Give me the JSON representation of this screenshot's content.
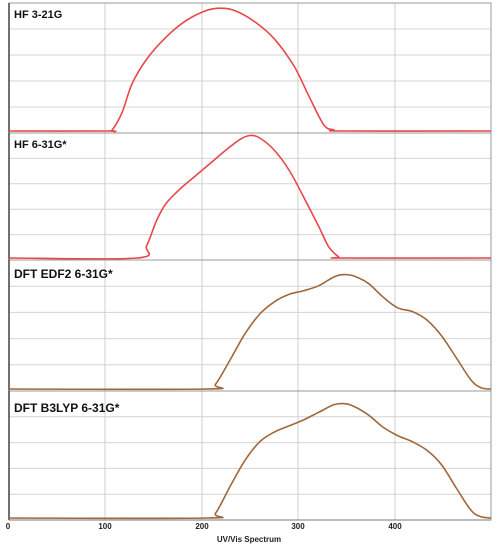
{
  "chart_data": {
    "type": "line",
    "xlabel": "UV/Vis Spectrum",
    "xlim": [
      0,
      490
    ],
    "xticks": [
      0,
      100,
      200,
      300,
      400
    ],
    "xtick_labels": [
      "0",
      "100",
      "200",
      "300",
      "400"
    ],
    "ylim": [
      0,
      1
    ],
    "grid": true,
    "panels": [
      {
        "label": "HF 3-21G",
        "series": [
          {
            "color": "#e8474a",
            "x": [
              0,
              100,
              105,
              115,
              125,
              140,
              160,
              180,
              200,
              215,
              230,
              250,
              270,
              290,
              305,
              320,
              330,
              340,
              490
            ],
            "y": [
              0,
              0,
              0.01,
              0.15,
              0.38,
              0.58,
              0.76,
              0.89,
              0.97,
              0.99,
              0.97,
              0.88,
              0.74,
              0.52,
              0.28,
              0.05,
              0.01,
              0,
              0
            ]
          }
        ]
      },
      {
        "label": "HF 6-31G*",
        "series": [
          {
            "color": "#e8474a",
            "x": [
              0,
              130,
              140,
              150,
              160,
              175,
              190,
              205,
              220,
              235,
              245,
              255,
              270,
              285,
              300,
              315,
              325,
              335,
              340,
              490
            ],
            "y": [
              0,
              0,
              0.1,
              0.3,
              0.44,
              0.56,
              0.66,
              0.76,
              0.86,
              0.95,
              0.98,
              0.96,
              0.86,
              0.7,
              0.48,
              0.25,
              0.09,
              0.01,
              0,
              0
            ]
          }
        ]
      },
      {
        "label": "DFT EDF2 6-31G*",
        "series": [
          {
            "color": "#a0673b",
            "x": [
              0,
              200,
              210,
              225,
              240,
              255,
              270,
              285,
              300,
              315,
              330,
              340,
              350,
              365,
              380,
              395,
              410,
              425,
              440,
              455,
              470,
              480,
              490
            ],
            "y": [
              0,
              0,
              0.04,
              0.24,
              0.45,
              0.61,
              0.71,
              0.77,
              0.8,
              0.84,
              0.91,
              0.93,
              0.92,
              0.86,
              0.75,
              0.66,
              0.63,
              0.56,
              0.43,
              0.25,
              0.07,
              0.01,
              0
            ]
          }
        ]
      },
      {
        "label": "DFT B3LYP 6-31G*",
        "series": [
          {
            "color": "#a0673b",
            "x": [
              0,
              200,
              210,
              225,
              240,
              255,
              270,
              285,
              300,
              315,
              330,
              340,
              350,
              365,
              380,
              395,
              410,
              425,
              440,
              455,
              470,
              480,
              490
            ],
            "y": [
              0,
              0,
              0.04,
              0.26,
              0.47,
              0.62,
              0.7,
              0.75,
              0.8,
              0.86,
              0.92,
              0.93,
              0.91,
              0.84,
              0.74,
              0.67,
              0.62,
              0.55,
              0.43,
              0.24,
              0.06,
              0.01,
              0
            ]
          }
        ]
      }
    ]
  }
}
